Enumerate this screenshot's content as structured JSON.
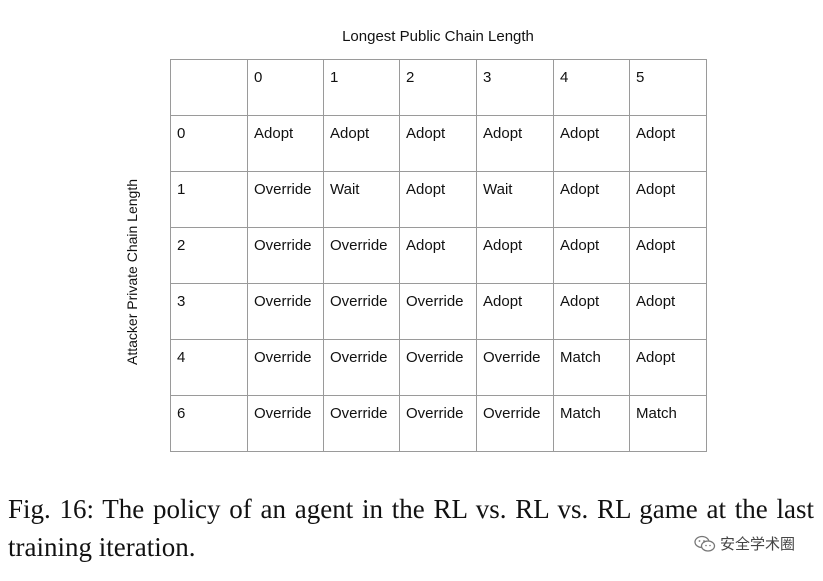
{
  "figure": {
    "column_axis_label": "Longest Public Chain Length",
    "row_axis_label": "Attacker Private Chain Length",
    "header_row": [
      "",
      "0",
      "1",
      "2",
      "3",
      "4",
      "5"
    ],
    "rows": [
      {
        "label": "0",
        "cells": [
          "Adopt",
          "Adopt",
          "Adopt",
          "Adopt",
          "Adopt",
          "Adopt"
        ]
      },
      {
        "label": "1",
        "cells": [
          "Override",
          "Wait",
          "Adopt",
          "Wait",
          "Adopt",
          "Adopt"
        ]
      },
      {
        "label": "2",
        "cells": [
          "Override",
          "Override",
          "Adopt",
          "Adopt",
          "Adopt",
          "Adopt"
        ]
      },
      {
        "label": "3",
        "cells": [
          "Override",
          "Override",
          "Override",
          "Adopt",
          "Adopt",
          "Adopt"
        ]
      },
      {
        "label": "4",
        "cells": [
          "Override",
          "Override",
          "Override",
          "Override",
          "Match",
          "Adopt"
        ]
      },
      {
        "label": "6",
        "cells": [
          "Override",
          "Override",
          "Override",
          "Override",
          "Match",
          "Match"
        ]
      }
    ]
  },
  "caption": "Fig. 16: The policy of an agent in the RL vs. RL vs. RL game at the last training iteration.",
  "watermark": {
    "text": "安全学术圈",
    "icon": "wechat-icon"
  }
}
